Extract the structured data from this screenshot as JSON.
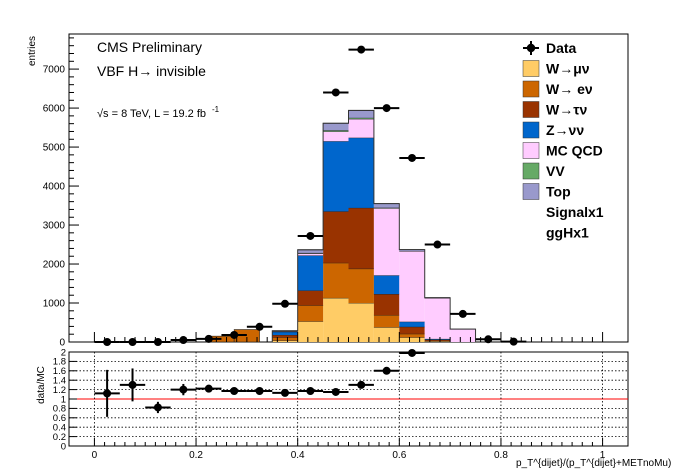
{
  "chart_data": [
    {
      "type": "bar",
      "subtype": "stacked-histogram",
      "annotations": {
        "experiment": "CMS Preliminary",
        "analysis": "VBF H→ invisible",
        "lumi": "√s = 8 TeV, L = 19.2 fb",
        "lumi_exponent": "-1"
      },
      "ylabel": "entries",
      "xlim": [
        -0.05,
        1.05
      ],
      "ylim": [
        0,
        7900
      ],
      "yticks": [
        0,
        1000,
        2000,
        3000,
        4000,
        5000,
        6000,
        7000
      ],
      "bin_edges": [
        0.35,
        0.4,
        0.45,
        0.5,
        0.55,
        0.6,
        0.65,
        0.7,
        0.75
      ],
      "series": [
        {
          "name": "W→μν",
          "color": "#ffcc66",
          "values": [
            40,
            530,
            1130,
            1000,
            380,
            120,
            20,
            0
          ]
        },
        {
          "name": "W→ eν",
          "color": "#cc6600",
          "values": [
            80,
            410,
            900,
            880,
            310,
            90,
            10,
            0
          ]
        },
        {
          "name": "W→τν",
          "color": "#993300",
          "values": [
            60,
            380,
            1320,
            1560,
            540,
            180,
            30,
            0
          ]
        },
        {
          "name": "Z→νν",
          "color": "#0066cc",
          "values": [
            80,
            900,
            1800,
            1800,
            480,
            130,
            20,
            0
          ]
        },
        {
          "name": "MC QCD",
          "color": "#ffccff",
          "values": [
            10,
            50,
            250,
            480,
            1720,
            1810,
            1050,
            330
          ]
        },
        {
          "name": "VV",
          "color": "#66aa66",
          "values": [
            2,
            15,
            30,
            30,
            15,
            5,
            1,
            0
          ]
        },
        {
          "name": "Top",
          "color": "#9999cc",
          "values": [
            15,
            80,
            180,
            190,
            105,
            35,
            5,
            0
          ]
        }
      ],
      "low_bin_totals": {
        "x": [
          0.25,
          0.3
        ],
        "values": [
          150,
          320
        ]
      },
      "data_points": {
        "name": "Data",
        "x": [
          0.025,
          0.075,
          0.125,
          0.175,
          0.225,
          0.275,
          0.325,
          0.375,
          0.425,
          0.475,
          0.525,
          0.575,
          0.625,
          0.675,
          0.725,
          0.775,
          0.825
        ],
        "y": [
          0,
          0,
          0,
          50,
          80,
          180,
          390,
          980,
          2720,
          6400,
          7500,
          6000,
          4720,
          2500,
          720,
          70,
          10
        ]
      },
      "legend": {
        "placement": "top-right",
        "entries": [
          "Data",
          "W→μν",
          "W→ eν",
          "W→τν",
          "Z→νν",
          "MC QCD",
          "VV",
          "Top",
          "Signalx1",
          "ggHx1"
        ]
      }
    },
    {
      "type": "scatter",
      "subtype": "ratio",
      "ylabel": "data/MC",
      "xlabel": "p_T^{dijet}/(p_T^{dijet}+METnoMu)",
      "xlim": [
        -0.05,
        1.05
      ],
      "ylim": [
        0,
        2
      ],
      "xticks": [
        0,
        0.2,
        0.4,
        0.6,
        0.8,
        1
      ],
      "xtick_labels": [
        "0",
        "0.2",
        "0.4",
        "0.6",
        "0.8",
        "1"
      ],
      "yticks": [
        0,
        0.2,
        0.4,
        0.6,
        0.8,
        1,
        1.2,
        1.4,
        1.6,
        1.8,
        2
      ],
      "ytick_labels": [
        "0",
        "0.2",
        "0.4",
        "0.6",
        "0.8",
        "1",
        "1.2",
        "1.4",
        "1.6",
        "1.8",
        "2"
      ],
      "reference_line": 1,
      "grid": true,
      "points": {
        "x": [
          0.025,
          0.075,
          0.125,
          0.175,
          0.225,
          0.275,
          0.325,
          0.375,
          0.425,
          0.475,
          0.525,
          0.575,
          0.625
        ],
        "y": [
          1.12,
          1.3,
          0.82,
          1.2,
          1.22,
          1.17,
          1.17,
          1.13,
          1.17,
          1.15,
          1.3,
          1.6,
          1.98
        ],
        "yerr": [
          0.5,
          0.35,
          0.12,
          0.12,
          0.08,
          0.05,
          0.04,
          0.03,
          0.02,
          0.02,
          0.02,
          0.02,
          0.03
        ]
      }
    }
  ]
}
